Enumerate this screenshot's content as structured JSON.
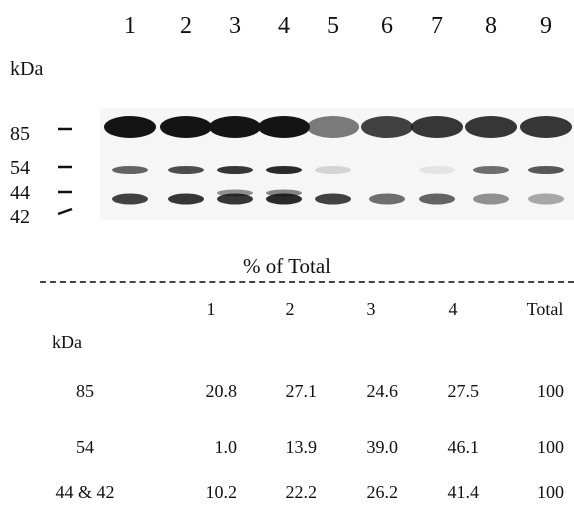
{
  "blot": {
    "lane_labels": [
      "1",
      "2",
      "3",
      "4",
      "5",
      "6",
      "7",
      "8",
      "9"
    ],
    "unit_label": "kDa",
    "markers": [
      "85",
      "54",
      "44",
      "42"
    ],
    "band_color": "#141414",
    "bands": {
      "85": [
        1.0,
        1.0,
        1.0,
        1.0,
        0.55,
        0.8,
        0.85,
        0.85,
        0.85
      ],
      "54": [
        0.65,
        0.75,
        0.85,
        0.9,
        0.15,
        0.0,
        0.08,
        0.6,
        0.7
      ],
      "44": [
        0.8,
        0.85,
        0.85,
        0.9,
        0.8,
        0.6,
        0.65,
        0.45,
        0.35
      ],
      "42": [
        0.0,
        0.0,
        0.45,
        0.5,
        0.0,
        0.0,
        0.0,
        0.0,
        0.0
      ]
    }
  },
  "table": {
    "title": "% of Total",
    "unit_label": "kDa",
    "columns": [
      "1",
      "2",
      "3",
      "4",
      "Total"
    ],
    "rows": [
      {
        "label": "85",
        "values": [
          "20.8",
          "27.1",
          "24.6",
          "27.5",
          "100"
        ]
      },
      {
        "label": "54",
        "values": [
          "1.0",
          "13.9",
          "39.0",
          "46.1",
          "100"
        ]
      },
      {
        "label": "44 & 42",
        "values": [
          "10.2",
          "22.2",
          "26.2",
          "41.4",
          "100"
        ]
      }
    ]
  }
}
